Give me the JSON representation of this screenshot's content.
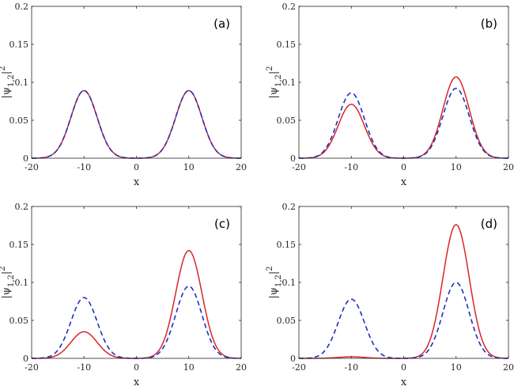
{
  "chart_data": [
    {
      "type": "line",
      "panel_label": "(a)",
      "xlabel": "x",
      "ylabel_main": "|ψ",
      "ylabel_sub": "1,2",
      "ylabel_close": "|",
      "ylabel_sup": "2",
      "xlim": [
        -20,
        20
      ],
      "ylim": [
        0,
        0.2
      ],
      "xticks": [
        "-20",
        "-10",
        "0",
        "10",
        "20"
      ],
      "yticks": [
        "0",
        "0.05",
        "0.1",
        "0.15",
        "0.2"
      ],
      "series": [
        {
          "style": "solid",
          "color": "#d62728",
          "peaks": [
            {
              "x": -10,
              "y": 0.089
            },
            {
              "x": 10,
              "y": 0.089
            }
          ]
        },
        {
          "style": "dashed",
          "color": "#1f2fbf",
          "peaks": [
            {
              "x": -10,
              "y": 0.089
            },
            {
              "x": 10,
              "y": 0.089
            }
          ]
        }
      ]
    },
    {
      "type": "line",
      "panel_label": "(b)",
      "xlabel": "x",
      "ylabel_main": "|ψ",
      "ylabel_sub": "1,2",
      "ylabel_close": "|",
      "ylabel_sup": "2",
      "xlim": [
        -20,
        20
      ],
      "ylim": [
        0,
        0.2
      ],
      "xticks": [
        "-20",
        "-10",
        "0",
        "10",
        "20"
      ],
      "yticks": [
        "0",
        "0.05",
        "0.1",
        "0.15",
        "0.2"
      ],
      "series": [
        {
          "style": "solid",
          "color": "#d62728",
          "peaks": [
            {
              "x": -10,
              "y": 0.071
            },
            {
              "x": 10,
              "y": 0.107
            }
          ]
        },
        {
          "style": "dashed",
          "color": "#1f2fbf",
          "peaks": [
            {
              "x": -10,
              "y": 0.086
            },
            {
              "x": 10,
              "y": 0.092
            }
          ]
        }
      ]
    },
    {
      "type": "line",
      "panel_label": "(c)",
      "xlabel": "x",
      "ylabel_main": "|ψ",
      "ylabel_sub": "1,2",
      "ylabel_close": "|",
      "ylabel_sup": "2",
      "xlim": [
        -20,
        20
      ],
      "ylim": [
        0,
        0.2
      ],
      "xticks": [
        "-20",
        "-10",
        "0",
        "10",
        "20"
      ],
      "yticks": [
        "0",
        "0.05",
        "0.1",
        "0.15",
        "0.2"
      ],
      "series": [
        {
          "style": "solid",
          "color": "#d62728",
          "peaks": [
            {
              "x": -10,
              "y": 0.035
            },
            {
              "x": 10,
              "y": 0.142
            }
          ]
        },
        {
          "style": "dashed",
          "color": "#1f2fbf",
          "peaks": [
            {
              "x": -10,
              "y": 0.08
            },
            {
              "x": 10,
              "y": 0.095
            }
          ]
        }
      ]
    },
    {
      "type": "line",
      "panel_label": "(d)",
      "xlabel": "x",
      "ylabel_main": "|ψ",
      "ylabel_sub": "1,2",
      "ylabel_close": "|",
      "ylabel_sup": "2",
      "xlim": [
        -20,
        20
      ],
      "ylim": [
        0,
        0.2
      ],
      "xticks": [
        "-20",
        "-10",
        "0",
        "10",
        "20"
      ],
      "yticks": [
        "0",
        "0.05",
        "0.1",
        "0.15",
        "0.2"
      ],
      "series": [
        {
          "style": "solid",
          "color": "#d62728",
          "peaks": [
            {
              "x": -10,
              "y": 0.002
            },
            {
              "x": 10,
              "y": 0.176
            }
          ]
        },
        {
          "style": "dashed",
          "color": "#1f2fbf",
          "peaks": [
            {
              "x": -10,
              "y": 0.078
            },
            {
              "x": 10,
              "y": 0.1
            }
          ]
        }
      ]
    }
  ]
}
